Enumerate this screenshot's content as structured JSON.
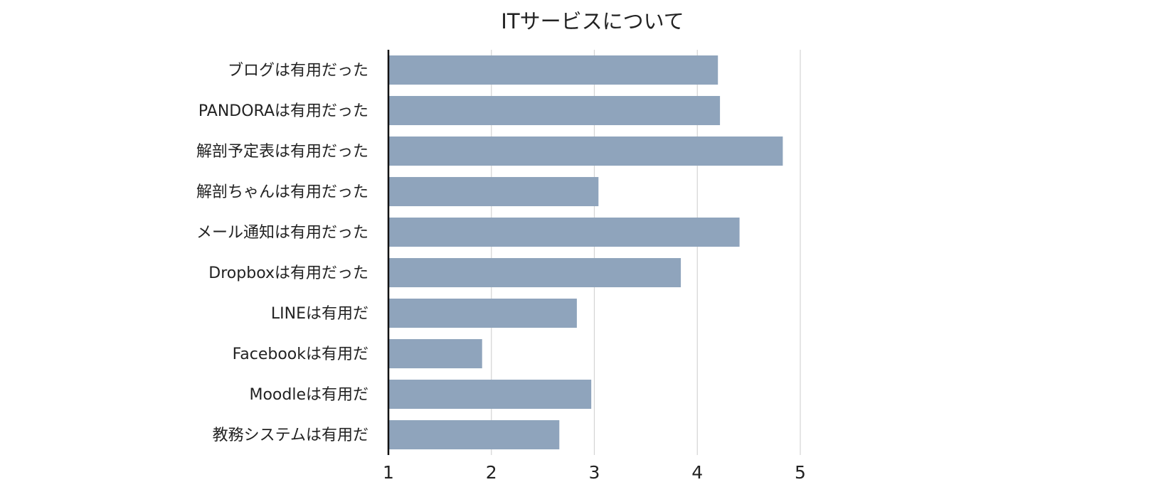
{
  "chart_data": {
    "type": "bar",
    "orientation": "horizontal",
    "title": "ITサービスについて",
    "xlabel": "",
    "ylabel": "",
    "categories": [
      "ブログは有用だった",
      "PANDORAは有用だった",
      "解剖予定表は有用だった",
      "解剖ちゃんは有用だった",
      "メール通知は有用だった",
      "Dropboxは有用だった",
      "LINEは有用だ",
      "Facebookは有用だ",
      "Moodleは有用だ",
      "教務システムは有用だ"
    ],
    "values": [
      4.2,
      4.22,
      4.83,
      3.04,
      4.41,
      3.84,
      2.83,
      1.91,
      2.97,
      2.66
    ],
    "xlim": [
      1,
      5
    ],
    "xticks": [
      "1",
      "2",
      "3",
      "4",
      "5"
    ],
    "grid": true,
    "legend": "none",
    "bar_color": "#8fa4bc"
  }
}
